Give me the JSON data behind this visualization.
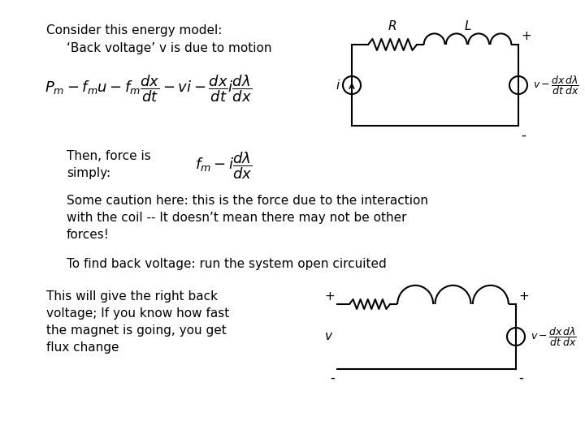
{
  "bg_color": "#ffffff",
  "title_text": "Consider this energy model:",
  "subtitle_text": "‘Back voltage’ v is due to motion",
  "eq1_text": "$P_{m} - f_{m}u - f_{m}\\dfrac{dx}{dt} - vi - \\dfrac{dx}{dt}i\\dfrac{d\\lambda}{dx}$",
  "then_text": "Then, force is\nsimply:",
  "eq2_text": "$f_{m} - i\\dfrac{d\\lambda}{dx}$",
  "caution_text": "Some caution here: this is the force due to the interaction\nwith the coil -- It doesn’t mean there may not be other\nforces!",
  "tofind_text": "To find back voltage: run the system open circuited",
  "thiswill_text": "This will give the right back\nvoltage; If you know how fast\nthe magnet is going, you get\nflux change",
  "backemf_text": "$v - \\dfrac{dx}{dt}\\dfrac{d\\lambda}{dx}$",
  "font_size_main": 11,
  "font_size_eq": 13,
  "font_size_circuit": 10
}
